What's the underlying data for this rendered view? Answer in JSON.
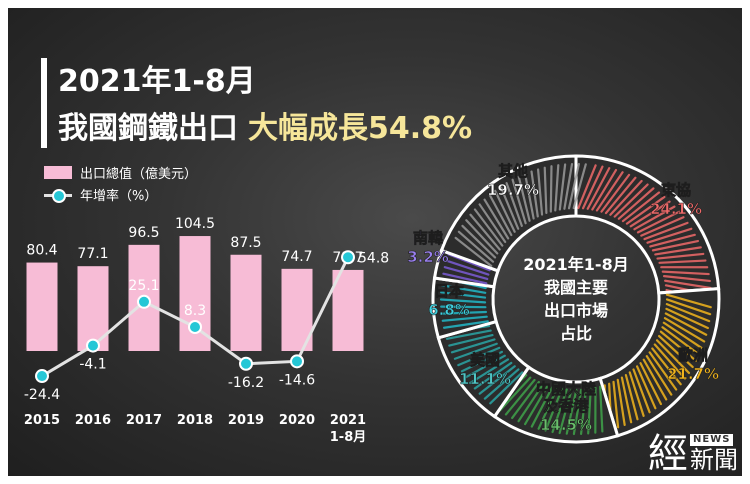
{
  "title": {
    "line1": "2021年1-8月",
    "line2_main": "我國鋼鐵出口",
    "line2_highlight": "大幅成長54.8%"
  },
  "colors": {
    "bar": "#f7bcd6",
    "line": "#e3e3e3",
    "marker": "#25c7d6",
    "highlight": "#f6e69a"
  },
  "logo": {
    "big": "經",
    "news": "NEWS",
    "small": "新聞"
  },
  "chart_data": [
    {
      "type": "bar",
      "categories": [
        "2015",
        "2016",
        "2017",
        "2018",
        "2019",
        "2020",
        "2021\n1-8月"
      ],
      "category_labels": [
        [
          "2015"
        ],
        [
          "2016"
        ],
        [
          "2017"
        ],
        [
          "2018"
        ],
        [
          "2019"
        ],
        [
          "2020"
        ],
        [
          "2021",
          "1-8月"
        ]
      ],
      "series": [
        {
          "name": "出口總值（億美元）",
          "type": "bar",
          "values": [
            80.4,
            77.1,
            96.5,
            104.5,
            87.5,
            74.7,
            73.7
          ]
        },
        {
          "name": "年增率（%）",
          "type": "line",
          "values": [
            -24.4,
            -4.1,
            25.1,
            8.3,
            -16.2,
            -14.6,
            54.8
          ]
        }
      ],
      "legend_position": "top-left",
      "grid": false
    },
    {
      "type": "pie",
      "center_label": [
        "2021年1-8月",
        "我國主要",
        "出口市場",
        "占比"
      ],
      "slices": [
        {
          "label": "東協",
          "value": 24.1,
          "display": "24.1%",
          "color": "#f06a6a"
        },
        {
          "label": "歐洲",
          "value": 21.7,
          "display": "21.7%",
          "color": "#f2b51c"
        },
        {
          "label": "中國大陸\n及香港",
          "label_lines": [
            "中國大陸",
            "及香港"
          ],
          "value": 14.5,
          "display": "14.5%",
          "color": "#3fa34a"
        },
        {
          "label": "美國",
          "value": 11.1,
          "display": "11.1%",
          "color": "#2aa6a6"
        },
        {
          "label": "日本",
          "value": 6.8,
          "display": "6.8%",
          "color": "#22b8c8"
        },
        {
          "label": "南韓",
          "value": 3.2,
          "display": "3.2%",
          "color": "#7b5bd6"
        },
        {
          "label": "其他",
          "value": 19.7,
          "display": "19.7%",
          "color": "#9a9a9a"
        }
      ]
    }
  ]
}
